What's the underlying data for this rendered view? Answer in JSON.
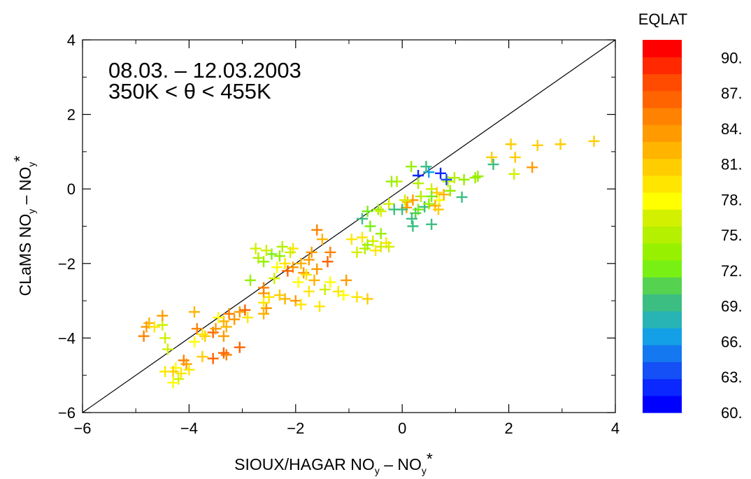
{
  "chart_data": {
    "type": "scatter",
    "annotation": {
      "line1": "08.03. – 12.03.2003",
      "line2": "350K < θ < 455K"
    },
    "xlabel": {
      "main": "SIOUX/HAGAR NO",
      "sub1": "y",
      "mid": " – NO",
      "sub2": "y",
      "sup": "*"
    },
    "ylabel": {
      "main": "CLaMS NO",
      "sub1": "y",
      "mid": " – NO",
      "sub2": "y",
      "sup": "*"
    },
    "xlim": [
      -6,
      4
    ],
    "ylim": [
      -6,
      4
    ],
    "x_ticks": [
      -6,
      -4,
      -2,
      0,
      2,
      4
    ],
    "y_ticks": [
      -6,
      -4,
      -2,
      0,
      2,
      4
    ],
    "x_tick_labels": [
      "−6",
      "−4",
      "−2",
      "0",
      "2",
      "4"
    ],
    "y_tick_labels": [
      "−6",
      "−4",
      "−2",
      "0",
      "2",
      "4"
    ],
    "reference_line": "1:1",
    "grid": false,
    "marker": "plus",
    "colorbar": {
      "title": "EQLAT",
      "min": 60,
      "max": 91.5,
      "colors": [
        "#0000ff",
        "#0a28ff",
        "#1450f5",
        "#1478f0",
        "#14a0e6",
        "#28b4b4",
        "#3cbe82",
        "#55d250",
        "#78f014",
        "#96f000",
        "#b4f000",
        "#d2f000",
        "#ffff00",
        "#ffe600",
        "#ffcd00",
        "#ffb400",
        "#ff9b00",
        "#ff8200",
        "#ff6400",
        "#ff4b00",
        "#ff2800",
        "#ff0000"
      ],
      "tick_values": [
        60,
        63,
        66,
        69,
        72,
        75,
        78,
        81,
        84,
        87,
        90
      ],
      "tick_labels": [
        "60.",
        "63.",
        "66.",
        "69.",
        "72.",
        "75.",
        "78.",
        "81.",
        "84.",
        "87.",
        "90."
      ]
    },
    "points": [
      {
        "x": 3.6,
        "y": 1.28,
        "eqlat": 81
      },
      {
        "x": 2.97,
        "y": 1.2,
        "eqlat": 81
      },
      {
        "x": 2.54,
        "y": 1.17,
        "eqlat": 81
      },
      {
        "x": 2.44,
        "y": 0.58,
        "eqlat": 83
      },
      {
        "x": 2.1,
        "y": 0.4,
        "eqlat": 76
      },
      {
        "x": 2.04,
        "y": 1.2,
        "eqlat": 81
      },
      {
        "x": 2.12,
        "y": 0.85,
        "eqlat": 81
      },
      {
        "x": 1.68,
        "y": 0.85,
        "eqlat": 81
      },
      {
        "x": 1.71,
        "y": 0.66,
        "eqlat": 69
      },
      {
        "x": 1.42,
        "y": 0.34,
        "eqlat": 74
      },
      {
        "x": 1.37,
        "y": 0.3,
        "eqlat": 74
      },
      {
        "x": 1.16,
        "y": 0.25,
        "eqlat": 74
      },
      {
        "x": 1.12,
        "y": -0.22,
        "eqlat": 70
      },
      {
        "x": 0.98,
        "y": 0.3,
        "eqlat": 75
      },
      {
        "x": 0.86,
        "y": 0.2,
        "eqlat": 76
      },
      {
        "x": 0.9,
        "y": -0.05,
        "eqlat": 74
      },
      {
        "x": 0.72,
        "y": 0.42,
        "eqlat": 62
      },
      {
        "x": 0.5,
        "y": 0.45,
        "eqlat": 67
      },
      {
        "x": 0.3,
        "y": 0.36,
        "eqlat": 62
      },
      {
        "x": 0.83,
        "y": 0.25,
        "eqlat": 64
      },
      {
        "x": 0.3,
        "y": 0.15,
        "eqlat": 75
      },
      {
        "x": 0.45,
        "y": 0.6,
        "eqlat": 69
      },
      {
        "x": 0.17,
        "y": 0.6,
        "eqlat": 74
      },
      {
        "x": 0.55,
        "y": 0.0,
        "eqlat": 76
      },
      {
        "x": 0.65,
        "y": -0.1,
        "eqlat": 81
      },
      {
        "x": 0.7,
        "y": -0.3,
        "eqlat": 78
      },
      {
        "x": 0.55,
        "y": -0.2,
        "eqlat": 72
      },
      {
        "x": 0.42,
        "y": -0.48,
        "eqlat": 70
      },
      {
        "x": 0.3,
        "y": -0.55,
        "eqlat": 72
      },
      {
        "x": 0.25,
        "y": -0.65,
        "eqlat": 71
      },
      {
        "x": 0.2,
        "y": -0.3,
        "eqlat": 83
      },
      {
        "x": 0.1,
        "y": -0.35,
        "eqlat": 82
      },
      {
        "x": 0.08,
        "y": -0.5,
        "eqlat": 83
      },
      {
        "x": 0.0,
        "y": -0.55,
        "eqlat": 70
      },
      {
        "x": 0.18,
        "y": -0.8,
        "eqlat": 70
      },
      {
        "x": 0.55,
        "y": -0.95,
        "eqlat": 70
      },
      {
        "x": 0.2,
        "y": -1.0,
        "eqlat": 70
      },
      {
        "x": 0.35,
        "y": -0.2,
        "eqlat": 75
      },
      {
        "x": 0.5,
        "y": -0.4,
        "eqlat": 73
      },
      {
        "x": 0.62,
        "y": -0.45,
        "eqlat": 82
      },
      {
        "x": 0.68,
        "y": -0.55,
        "eqlat": 81
      },
      {
        "x": 0.78,
        "y": -0.15,
        "eqlat": 82
      },
      {
        "x": -0.1,
        "y": 0.2,
        "eqlat": 75
      },
      {
        "x": -0.2,
        "y": 0.2,
        "eqlat": 73
      },
      {
        "x": -0.25,
        "y": -0.4,
        "eqlat": 76
      },
      {
        "x": -0.45,
        "y": -0.55,
        "eqlat": 74
      },
      {
        "x": -0.4,
        "y": -0.6,
        "eqlat": 76
      },
      {
        "x": -0.65,
        "y": -0.6,
        "eqlat": 72
      },
      {
        "x": -0.75,
        "y": -0.8,
        "eqlat": 70
      },
      {
        "x": -0.6,
        "y": -1.0,
        "eqlat": 72
      },
      {
        "x": -0.4,
        "y": -1.2,
        "eqlat": 74
      },
      {
        "x": -0.3,
        "y": -1.45,
        "eqlat": 79
      },
      {
        "x": -0.4,
        "y": -1.55,
        "eqlat": 77
      },
      {
        "x": -0.5,
        "y": -1.65,
        "eqlat": 80
      },
      {
        "x": -0.25,
        "y": -1.55,
        "eqlat": 76
      },
      {
        "x": -0.65,
        "y": -1.5,
        "eqlat": 74
      },
      {
        "x": -0.75,
        "y": -1.3,
        "eqlat": 79
      },
      {
        "x": -0.95,
        "y": -1.35,
        "eqlat": 80
      },
      {
        "x": -0.85,
        "y": -1.7,
        "eqlat": 77
      },
      {
        "x": -0.7,
        "y": -1.6,
        "eqlat": 75
      },
      {
        "x": -0.55,
        "y": -1.4,
        "eqlat": 76
      },
      {
        "x": 0.05,
        "y": -0.3,
        "eqlat": 77
      },
      {
        "x": -0.15,
        "y": -0.55,
        "eqlat": 69
      },
      {
        "x": -1.6,
        "y": -1.1,
        "eqlat": 85
      },
      {
        "x": -1.5,
        "y": -1.35,
        "eqlat": 82
      },
      {
        "x": -1.35,
        "y": -1.7,
        "eqlat": 85
      },
      {
        "x": -1.7,
        "y": -1.7,
        "eqlat": 84
      },
      {
        "x": -1.75,
        "y": -1.9,
        "eqlat": 83
      },
      {
        "x": -1.4,
        "y": -1.95,
        "eqlat": 86
      },
      {
        "x": -1.9,
        "y": -2.0,
        "eqlat": 82
      },
      {
        "x": -2.05,
        "y": -2.1,
        "eqlat": 84
      },
      {
        "x": -2.15,
        "y": -2.2,
        "eqlat": 86
      },
      {
        "x": -1.85,
        "y": -2.25,
        "eqlat": 84
      },
      {
        "x": -1.6,
        "y": -2.15,
        "eqlat": 83
      },
      {
        "x": -2.05,
        "y": -1.6,
        "eqlat": 80
      },
      {
        "x": -2.1,
        "y": -1.7,
        "eqlat": 77
      },
      {
        "x": -2.25,
        "y": -1.55,
        "eqlat": 75
      },
      {
        "x": -2.3,
        "y": -1.8,
        "eqlat": 74
      },
      {
        "x": -2.45,
        "y": -1.75,
        "eqlat": 72
      },
      {
        "x": -2.6,
        "y": -1.95,
        "eqlat": 73
      },
      {
        "x": -2.7,
        "y": -1.85,
        "eqlat": 75
      },
      {
        "x": -2.75,
        "y": -1.6,
        "eqlat": 76
      },
      {
        "x": -2.55,
        "y": -1.65,
        "eqlat": 77
      },
      {
        "x": -2.35,
        "y": -2.1,
        "eqlat": 78
      },
      {
        "x": -2.2,
        "y": -2.0,
        "eqlat": 79
      },
      {
        "x": -2.4,
        "y": -2.4,
        "eqlat": 77
      },
      {
        "x": -1.95,
        "y": -2.5,
        "eqlat": 78
      },
      {
        "x": -1.8,
        "y": -2.3,
        "eqlat": 79
      },
      {
        "x": -1.65,
        "y": -2.45,
        "eqlat": 82
      },
      {
        "x": -2.85,
        "y": -2.45,
        "eqlat": 73
      },
      {
        "x": -2.5,
        "y": -2.9,
        "eqlat": 80
      },
      {
        "x": -2.2,
        "y": -2.95,
        "eqlat": 82
      },
      {
        "x": -2.0,
        "y": -3.0,
        "eqlat": 83
      },
      {
        "x": -1.9,
        "y": -3.1,
        "eqlat": 80
      },
      {
        "x": -2.6,
        "y": -3.35,
        "eqlat": 82
      },
      {
        "x": -2.6,
        "y": -2.8,
        "eqlat": 84
      },
      {
        "x": -2.55,
        "y": -3.2,
        "eqlat": 83
      },
      {
        "x": -2.3,
        "y": -2.85,
        "eqlat": 81
      },
      {
        "x": -2.6,
        "y": -2.65,
        "eqlat": 85
      },
      {
        "x": -2.6,
        "y": -3.05,
        "eqlat": 80
      },
      {
        "x": -1.75,
        "y": -2.75,
        "eqlat": 79
      },
      {
        "x": -1.45,
        "y": -2.7,
        "eqlat": 77
      },
      {
        "x": -1.35,
        "y": -2.5,
        "eqlat": 78
      },
      {
        "x": -1.2,
        "y": -2.75,
        "eqlat": 79
      },
      {
        "x": -1.1,
        "y": -2.85,
        "eqlat": 78
      },
      {
        "x": -1.05,
        "y": -2.45,
        "eqlat": 84
      },
      {
        "x": -0.85,
        "y": -2.9,
        "eqlat": 80
      },
      {
        "x": -0.65,
        "y": -2.95,
        "eqlat": 81
      },
      {
        "x": -1.55,
        "y": -3.15,
        "eqlat": 80
      },
      {
        "x": -3.05,
        "y": -3.3,
        "eqlat": 83
      },
      {
        "x": -3.25,
        "y": -3.35,
        "eqlat": 85
      },
      {
        "x": -3.35,
        "y": -3.55,
        "eqlat": 82
      },
      {
        "x": -3.15,
        "y": -3.5,
        "eqlat": 84
      },
      {
        "x": -2.95,
        "y": -3.25,
        "eqlat": 86
      },
      {
        "x": -2.9,
        "y": -3.45,
        "eqlat": 79
      },
      {
        "x": -3.45,
        "y": -3.45,
        "eqlat": 78
      },
      {
        "x": -3.3,
        "y": -3.7,
        "eqlat": 82
      },
      {
        "x": -3.55,
        "y": -3.85,
        "eqlat": 86
      },
      {
        "x": -3.5,
        "y": -3.75,
        "eqlat": 84
      },
      {
        "x": -3.7,
        "y": -3.95,
        "eqlat": 81
      },
      {
        "x": -3.85,
        "y": -3.75,
        "eqlat": 85
      },
      {
        "x": -3.9,
        "y": -3.3,
        "eqlat": 82
      },
      {
        "x": -3.75,
        "y": -3.9,
        "eqlat": 80
      },
      {
        "x": -3.35,
        "y": -3.95,
        "eqlat": 83
      },
      {
        "x": -3.3,
        "y": -4.45,
        "eqlat": 85
      },
      {
        "x": -3.35,
        "y": -4.4,
        "eqlat": 86
      },
      {
        "x": -3.05,
        "y": -4.25,
        "eqlat": 86
      },
      {
        "x": -3.55,
        "y": -4.55,
        "eqlat": 86
      },
      {
        "x": -3.75,
        "y": -4.5,
        "eqlat": 81
      },
      {
        "x": -3.9,
        "y": -4.1,
        "eqlat": 78
      },
      {
        "x": -4.1,
        "y": -4.6,
        "eqlat": 85
      },
      {
        "x": -4.05,
        "y": -4.7,
        "eqlat": 83
      },
      {
        "x": -4.0,
        "y": -4.85,
        "eqlat": 80
      },
      {
        "x": -4.25,
        "y": -4.8,
        "eqlat": 78
      },
      {
        "x": -4.15,
        "y": -4.95,
        "eqlat": 79
      },
      {
        "x": -4.3,
        "y": -4.9,
        "eqlat": 81
      },
      {
        "x": -4.45,
        "y": -4.9,
        "eqlat": 80
      },
      {
        "x": -4.2,
        "y": -5.1,
        "eqlat": 77
      },
      {
        "x": -4.3,
        "y": -5.2,
        "eqlat": 78
      },
      {
        "x": -4.4,
        "y": -4.3,
        "eqlat": 76
      },
      {
        "x": -4.45,
        "y": -4.0,
        "eqlat": 77
      },
      {
        "x": -4.5,
        "y": -3.65,
        "eqlat": 76
      },
      {
        "x": -4.5,
        "y": -3.4,
        "eqlat": 83
      },
      {
        "x": -4.75,
        "y": -3.6,
        "eqlat": 82
      },
      {
        "x": -4.8,
        "y": -3.7,
        "eqlat": 84
      },
      {
        "x": -4.85,
        "y": -3.95,
        "eqlat": 85
      },
      {
        "x": -4.65,
        "y": -3.7,
        "eqlat": 80
      }
    ]
  }
}
